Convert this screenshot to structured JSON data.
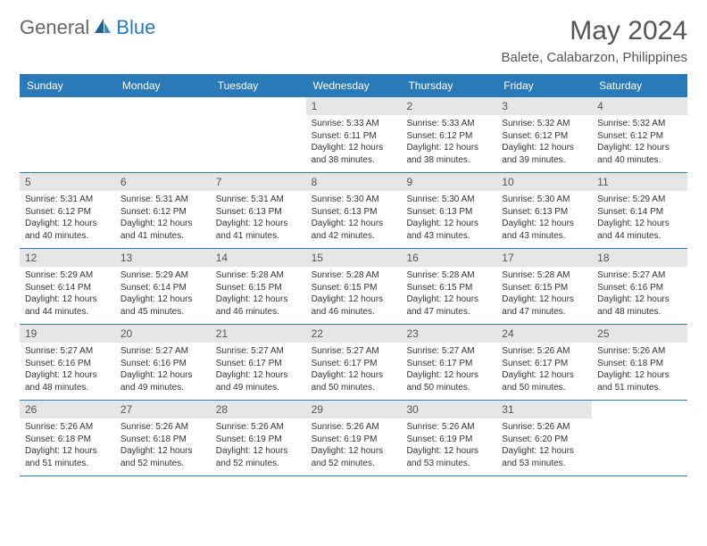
{
  "logo": {
    "general": "General",
    "blue": "Blue"
  },
  "title": "May 2024",
  "location": "Balete, Calabarzon, Philippines",
  "day_headers": [
    "Sunday",
    "Monday",
    "Tuesday",
    "Wednesday",
    "Thursday",
    "Friday",
    "Saturday"
  ],
  "colors": {
    "header_bg": "#2a7ab8",
    "header_text": "#ffffff",
    "daynum_bg": "#e6e6e6",
    "border": "#2a7ab8",
    "text": "#333333",
    "title_text": "#555555"
  },
  "weeks": [
    [
      {
        "n": "",
        "sunrise": "",
        "sunset": "",
        "daylight": ""
      },
      {
        "n": "",
        "sunrise": "",
        "sunset": "",
        "daylight": ""
      },
      {
        "n": "",
        "sunrise": "",
        "sunset": "",
        "daylight": ""
      },
      {
        "n": "1",
        "sunrise": "Sunrise: 5:33 AM",
        "sunset": "Sunset: 6:11 PM",
        "daylight": "Daylight: 12 hours and 38 minutes."
      },
      {
        "n": "2",
        "sunrise": "Sunrise: 5:33 AM",
        "sunset": "Sunset: 6:12 PM",
        "daylight": "Daylight: 12 hours and 38 minutes."
      },
      {
        "n": "3",
        "sunrise": "Sunrise: 5:32 AM",
        "sunset": "Sunset: 6:12 PM",
        "daylight": "Daylight: 12 hours and 39 minutes."
      },
      {
        "n": "4",
        "sunrise": "Sunrise: 5:32 AM",
        "sunset": "Sunset: 6:12 PM",
        "daylight": "Daylight: 12 hours and 40 minutes."
      }
    ],
    [
      {
        "n": "5",
        "sunrise": "Sunrise: 5:31 AM",
        "sunset": "Sunset: 6:12 PM",
        "daylight": "Daylight: 12 hours and 40 minutes."
      },
      {
        "n": "6",
        "sunrise": "Sunrise: 5:31 AM",
        "sunset": "Sunset: 6:12 PM",
        "daylight": "Daylight: 12 hours and 41 minutes."
      },
      {
        "n": "7",
        "sunrise": "Sunrise: 5:31 AM",
        "sunset": "Sunset: 6:13 PM",
        "daylight": "Daylight: 12 hours and 41 minutes."
      },
      {
        "n": "8",
        "sunrise": "Sunrise: 5:30 AM",
        "sunset": "Sunset: 6:13 PM",
        "daylight": "Daylight: 12 hours and 42 minutes."
      },
      {
        "n": "9",
        "sunrise": "Sunrise: 5:30 AM",
        "sunset": "Sunset: 6:13 PM",
        "daylight": "Daylight: 12 hours and 43 minutes."
      },
      {
        "n": "10",
        "sunrise": "Sunrise: 5:30 AM",
        "sunset": "Sunset: 6:13 PM",
        "daylight": "Daylight: 12 hours and 43 minutes."
      },
      {
        "n": "11",
        "sunrise": "Sunrise: 5:29 AM",
        "sunset": "Sunset: 6:14 PM",
        "daylight": "Daylight: 12 hours and 44 minutes."
      }
    ],
    [
      {
        "n": "12",
        "sunrise": "Sunrise: 5:29 AM",
        "sunset": "Sunset: 6:14 PM",
        "daylight": "Daylight: 12 hours and 44 minutes."
      },
      {
        "n": "13",
        "sunrise": "Sunrise: 5:29 AM",
        "sunset": "Sunset: 6:14 PM",
        "daylight": "Daylight: 12 hours and 45 minutes."
      },
      {
        "n": "14",
        "sunrise": "Sunrise: 5:28 AM",
        "sunset": "Sunset: 6:15 PM",
        "daylight": "Daylight: 12 hours and 46 minutes."
      },
      {
        "n": "15",
        "sunrise": "Sunrise: 5:28 AM",
        "sunset": "Sunset: 6:15 PM",
        "daylight": "Daylight: 12 hours and 46 minutes."
      },
      {
        "n": "16",
        "sunrise": "Sunrise: 5:28 AM",
        "sunset": "Sunset: 6:15 PM",
        "daylight": "Daylight: 12 hours and 47 minutes."
      },
      {
        "n": "17",
        "sunrise": "Sunrise: 5:28 AM",
        "sunset": "Sunset: 6:15 PM",
        "daylight": "Daylight: 12 hours and 47 minutes."
      },
      {
        "n": "18",
        "sunrise": "Sunrise: 5:27 AM",
        "sunset": "Sunset: 6:16 PM",
        "daylight": "Daylight: 12 hours and 48 minutes."
      }
    ],
    [
      {
        "n": "19",
        "sunrise": "Sunrise: 5:27 AM",
        "sunset": "Sunset: 6:16 PM",
        "daylight": "Daylight: 12 hours and 48 minutes."
      },
      {
        "n": "20",
        "sunrise": "Sunrise: 5:27 AM",
        "sunset": "Sunset: 6:16 PM",
        "daylight": "Daylight: 12 hours and 49 minutes."
      },
      {
        "n": "21",
        "sunrise": "Sunrise: 5:27 AM",
        "sunset": "Sunset: 6:17 PM",
        "daylight": "Daylight: 12 hours and 49 minutes."
      },
      {
        "n": "22",
        "sunrise": "Sunrise: 5:27 AM",
        "sunset": "Sunset: 6:17 PM",
        "daylight": "Daylight: 12 hours and 50 minutes."
      },
      {
        "n": "23",
        "sunrise": "Sunrise: 5:27 AM",
        "sunset": "Sunset: 6:17 PM",
        "daylight": "Daylight: 12 hours and 50 minutes."
      },
      {
        "n": "24",
        "sunrise": "Sunrise: 5:26 AM",
        "sunset": "Sunset: 6:17 PM",
        "daylight": "Daylight: 12 hours and 50 minutes."
      },
      {
        "n": "25",
        "sunrise": "Sunrise: 5:26 AM",
        "sunset": "Sunset: 6:18 PM",
        "daylight": "Daylight: 12 hours and 51 minutes."
      }
    ],
    [
      {
        "n": "26",
        "sunrise": "Sunrise: 5:26 AM",
        "sunset": "Sunset: 6:18 PM",
        "daylight": "Daylight: 12 hours and 51 minutes."
      },
      {
        "n": "27",
        "sunrise": "Sunrise: 5:26 AM",
        "sunset": "Sunset: 6:18 PM",
        "daylight": "Daylight: 12 hours and 52 minutes."
      },
      {
        "n": "28",
        "sunrise": "Sunrise: 5:26 AM",
        "sunset": "Sunset: 6:19 PM",
        "daylight": "Daylight: 12 hours and 52 minutes."
      },
      {
        "n": "29",
        "sunrise": "Sunrise: 5:26 AM",
        "sunset": "Sunset: 6:19 PM",
        "daylight": "Daylight: 12 hours and 52 minutes."
      },
      {
        "n": "30",
        "sunrise": "Sunrise: 5:26 AM",
        "sunset": "Sunset: 6:19 PM",
        "daylight": "Daylight: 12 hours and 53 minutes."
      },
      {
        "n": "31",
        "sunrise": "Sunrise: 5:26 AM",
        "sunset": "Sunset: 6:20 PM",
        "daylight": "Daylight: 12 hours and 53 minutes."
      },
      {
        "n": "",
        "sunrise": "",
        "sunset": "",
        "daylight": ""
      }
    ]
  ]
}
